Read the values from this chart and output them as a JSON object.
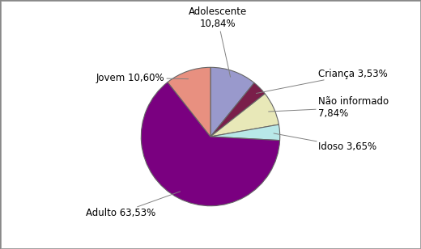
{
  "labels": [
    "Adolescente",
    "Criança",
    "Não informado",
    "Idoso",
    "Adulto",
    "Jovem"
  ],
  "values": [
    10.84,
    3.53,
    7.84,
    3.65,
    63.53,
    10.6
  ],
  "colors": [
    "#9999cc",
    "#7a1f4a",
    "#e8e8b8",
    "#b8e8e8",
    "#7a0080",
    "#e89080"
  ],
  "background_color": "#ffffff",
  "border_color": "#aaaaaa",
  "font_size": 8.5
}
